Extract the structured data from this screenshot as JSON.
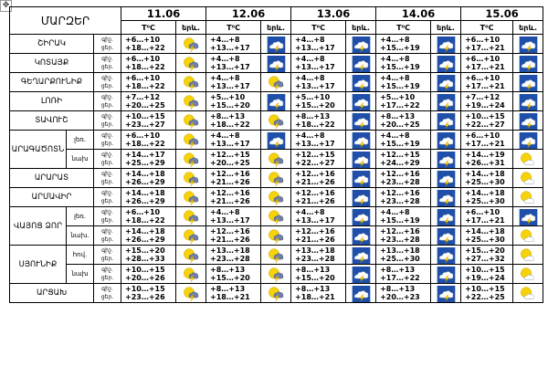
{
  "header": {
    "corner": "ՄԱՐԶԵՐ",
    "dates": [
      "11.06",
      "12.06",
      "13.06",
      "14.06",
      "15.06"
    ],
    "temp_label": "T⁰C",
    "icon_label": "երև."
  },
  "periods": {
    "night": "գիշ.",
    "day": "ցեր."
  },
  "rows": [
    {
      "region": "ՇԻՐԱԿ",
      "days": [
        {
          "n": "+6…+10",
          "d": "+18…+22",
          "icon": "sun-storm"
        },
        {
          "n": "+4…+8",
          "d": "+13…+17",
          "icon": "storm"
        },
        {
          "n": "+4…+8",
          "d": "+13…+17",
          "icon": "storm"
        },
        {
          "n": "+4…+8",
          "d": "+15…+19",
          "icon": "storm"
        },
        {
          "n": "+6…+10",
          "d": "+17…+21",
          "icon": "storm"
        }
      ]
    },
    {
      "region": "ԿՈՏԱՅՔ",
      "days": [
        {
          "n": "+6…+10",
          "d": "+18…+22",
          "icon": "sun-storm"
        },
        {
          "n": "+4…+8",
          "d": "+13…+17",
          "icon": "storm"
        },
        {
          "n": "+4…+8",
          "d": "+13…+17",
          "icon": "storm"
        },
        {
          "n": "+4…+8",
          "d": "+15…+19",
          "icon": "storm"
        },
        {
          "n": "+6…+10",
          "d": "+17…+21",
          "icon": "storm"
        }
      ]
    },
    {
      "region": "ԳԵՂԱՐՔՈՒՆԻՔ",
      "days": [
        {
          "n": "+6…+10",
          "d": "+18…+22",
          "icon": "sun-storm"
        },
        {
          "n": "+4…+8",
          "d": "+13…+17",
          "icon": "sun-storm"
        },
        {
          "n": "+4…+8",
          "d": "+13…+17",
          "icon": "storm"
        },
        {
          "n": "+4…+8",
          "d": "+15…+19",
          "icon": "storm"
        },
        {
          "n": "+6…+10",
          "d": "+17…+21",
          "icon": "storm"
        }
      ]
    },
    {
      "region": "ԼՈՌԻ",
      "days": [
        {
          "n": "+7…+12",
          "d": "+20…+25",
          "icon": "sun-storm"
        },
        {
          "n": "+5…+10",
          "d": "+15…+20",
          "icon": "storm"
        },
        {
          "n": "+5…+10",
          "d": "+15…+20",
          "icon": "storm"
        },
        {
          "n": "+5…+10",
          "d": "+17…+22",
          "icon": "storm"
        },
        {
          "n": "+7…+12",
          "d": "+19…+24",
          "icon": "storm"
        }
      ]
    },
    {
      "region": "ՏԱՎՈՒՇ",
      "days": [
        {
          "n": "+10…+15",
          "d": "+23…+27",
          "icon": "sun-storm"
        },
        {
          "n": "+8…+13",
          "d": "+18…+22",
          "icon": "sun-storm"
        },
        {
          "n": "+8…+13",
          "d": "+18…+22",
          "icon": "storm"
        },
        {
          "n": "+8…+13",
          "d": "+20…+25",
          "icon": "storm"
        },
        {
          "n": "+10…+15",
          "d": "+22…+27",
          "icon": "storm"
        }
      ]
    },
    {
      "region": "ԱՐԱԳԱԾՈՏՆ",
      "sub": "լեռ.",
      "days": [
        {
          "n": "+6…+10",
          "d": "+18…+22",
          "icon": "sun-storm"
        },
        {
          "n": "+4…+8",
          "d": "+13…+17",
          "icon": "storm"
        },
        {
          "n": "+4…+8",
          "d": "+13…+17",
          "icon": "storm"
        },
        {
          "n": "+4…+8",
          "d": "+15…+19",
          "icon": "storm"
        },
        {
          "n": "+6…+10",
          "d": "+17…+21",
          "icon": "storm"
        }
      ]
    },
    {
      "sub": "նախ",
      "days": [
        {
          "n": "+14…+17",
          "d": "+25…+29",
          "icon": "sun-storm"
        },
        {
          "n": "+12…+15",
          "d": "+20…+25",
          "icon": "sun-storm"
        },
        {
          "n": "+12…+15",
          "d": "+22…+27",
          "icon": "storm"
        },
        {
          "n": "+12…+15",
          "d": "+24…+29",
          "icon": "storm"
        },
        {
          "n": "+14…+19",
          "d": "+26…+31",
          "icon": "sun-cloud"
        }
      ]
    },
    {
      "region": "ԱՐԱՐԱՏ",
      "days": [
        {
          "n": "+14…+18",
          "d": "+26…+29",
          "icon": "sun-storm"
        },
        {
          "n": "+12…+16",
          "d": "+21…+26",
          "icon": "sun-storm"
        },
        {
          "n": "+12…+16",
          "d": "+21…+26",
          "icon": "storm"
        },
        {
          "n": "+12…+16",
          "d": "+23…+28",
          "icon": "storm"
        },
        {
          "n": "+14…+18",
          "d": "+25…+30",
          "icon": "sun-cloud"
        }
      ]
    },
    {
      "region": "ԱՐՄԱՎԻՐ",
      "days": [
        {
          "n": "+14…+18",
          "d": "+26…+29",
          "icon": "sun-storm"
        },
        {
          "n": "+12…+16",
          "d": "+21…+26",
          "icon": "sun-storm"
        },
        {
          "n": "+12…+16",
          "d": "+21…+26",
          "icon": "storm"
        },
        {
          "n": "+12…+16",
          "d": "+23…+28",
          "icon": "storm"
        },
        {
          "n": "+14…+18",
          "d": "+25…+30",
          "icon": "sun-cloud"
        }
      ]
    },
    {
      "region": "ՎԱՅՈՑ ՁՈՐ",
      "sub": "լեռ.",
      "days": [
        {
          "n": "+6…+10",
          "d": "+18…+22",
          "icon": "sun-storm"
        },
        {
          "n": "+4…+8",
          "d": "+13…+17",
          "icon": "sun-storm"
        },
        {
          "n": "+4…+8",
          "d": "+13…+17",
          "icon": "storm"
        },
        {
          "n": "+4…+8",
          "d": "+15…+19",
          "icon": "storm"
        },
        {
          "n": "+6…+10",
          "d": "+17…+21",
          "icon": "storm"
        }
      ]
    },
    {
      "sub": "նախ.",
      "days": [
        {
          "n": "+14…+18",
          "d": "+26…+29",
          "icon": "sun-storm"
        },
        {
          "n": "+12…+16",
          "d": "+21…+26",
          "icon": "sun-storm"
        },
        {
          "n": "+12…+16",
          "d": "+21…+26",
          "icon": "storm"
        },
        {
          "n": "+12…+16",
          "d": "+23…+28",
          "icon": "storm"
        },
        {
          "n": "+14…+18",
          "d": "+25…+30",
          "icon": "sun-cloud"
        }
      ]
    },
    {
      "region": "ՍՅՈՒՆԻՔ",
      "sub": "հով.",
      "days": [
        {
          "n": "+15…+20",
          "d": "+28…+33",
          "icon": "sun-storm"
        },
        {
          "n": "+13…+18",
          "d": "+23…+28",
          "icon": "sun-storm"
        },
        {
          "n": "+13…+18",
          "d": "+23…+28",
          "icon": "storm"
        },
        {
          "n": "+13…+18",
          "d": "+25…+30",
          "icon": "storm"
        },
        {
          "n": "+15…+20",
          "d": "+27…+32",
          "icon": "sun-cloud"
        }
      ]
    },
    {
      "sub": "նախ",
      "days": [
        {
          "n": "+10…+15",
          "d": "+20…+26",
          "icon": "sun-storm"
        },
        {
          "n": "+8…+13",
          "d": "+15…+20",
          "icon": "sun-storm"
        },
        {
          "n": "+8…+13",
          "d": "+15…+20",
          "icon": "storm"
        },
        {
          "n": "+8…+13",
          "d": "+17…+22",
          "icon": "storm"
        },
        {
          "n": "+10…+15",
          "d": "+19…+24",
          "icon": "sun-cloud"
        }
      ]
    },
    {
      "region": "ԱՐՑԱԽ",
      "days": [
        {
          "n": "+10…+15",
          "d": "+23…+26",
          "icon": "sun-storm"
        },
        {
          "n": "+8…+13",
          "d": "+18…+21",
          "icon": "sun-storm"
        },
        {
          "n": "+8…+13",
          "d": "+18…+21",
          "icon": "storm"
        },
        {
          "n": "+8…+13",
          "d": "+20…+23",
          "icon": "storm"
        },
        {
          "n": "+10…+15",
          "d": "+22…+25",
          "icon": "sun-cloud"
        }
      ]
    }
  ],
  "colors": {
    "storm_bg": "#1f4fa8",
    "sun": "#f5d20a",
    "bolt": "#ffd400",
    "cloud": "#ffffff"
  }
}
